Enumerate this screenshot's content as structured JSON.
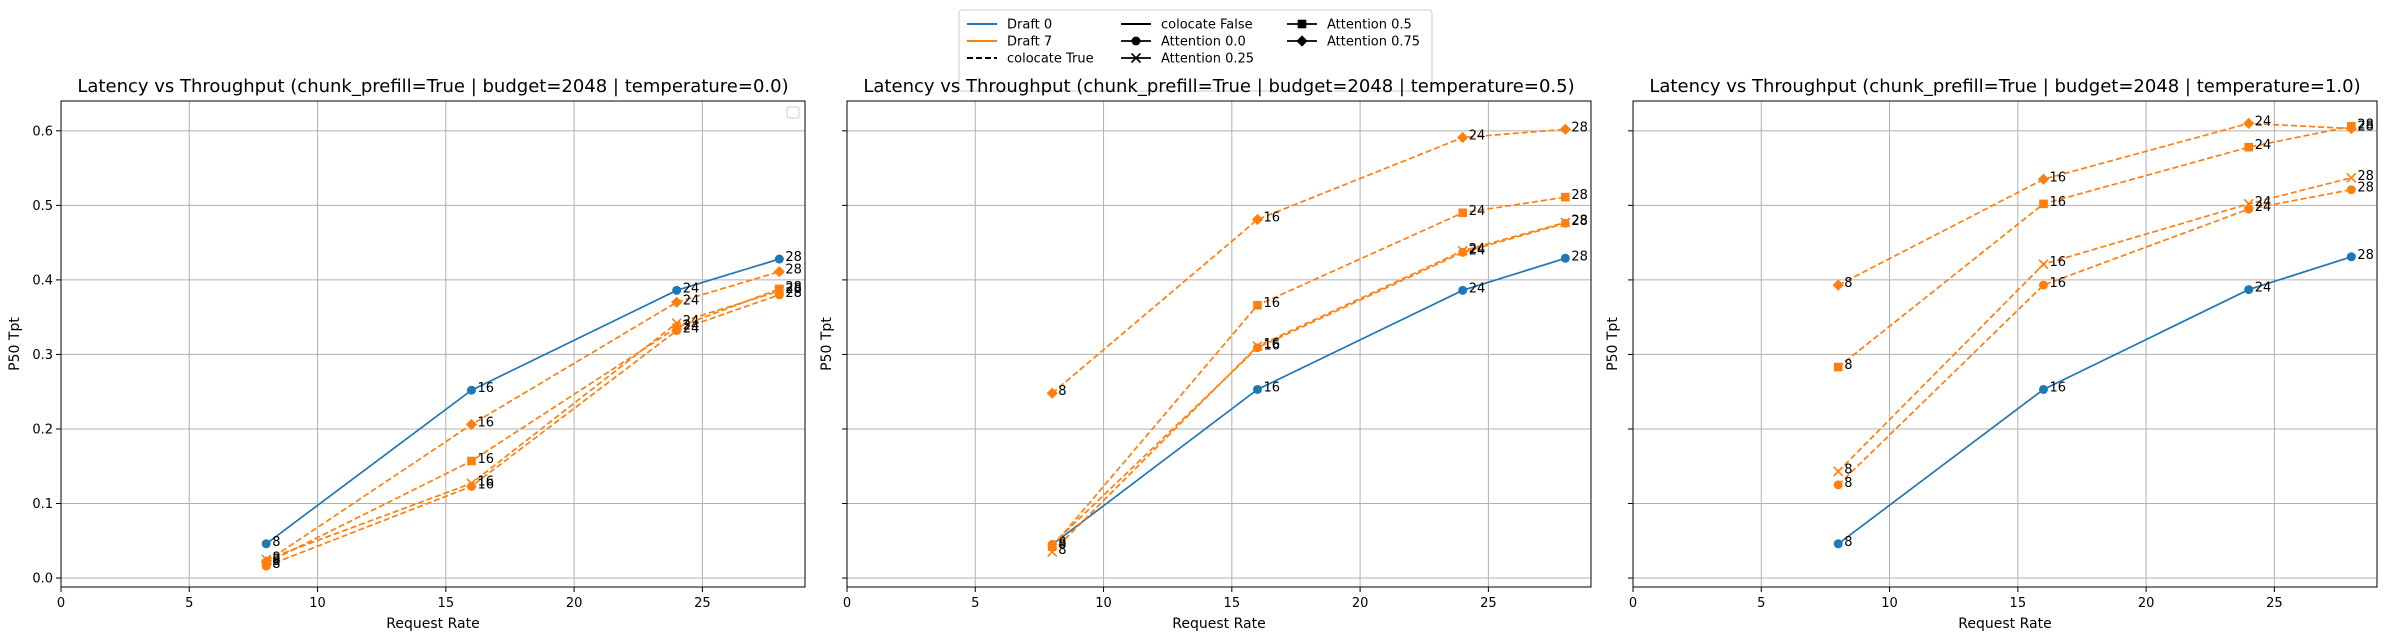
{
  "chart_data": [
    {
      "type": "line",
      "title": "Latency vs Throughput (chunk_prefill=True | budget=2048 | temperature=0.0)",
      "xlabel": "Request Rate",
      "ylabel": "P50 Tpt",
      "xlim": [
        0,
        29
      ],
      "ylim": [
        -0.012,
        0.64
      ],
      "xticks": [
        "0",
        "5",
        "10",
        "15",
        "20",
        "25"
      ],
      "yticks": [
        "0.0",
        "0.1",
        "0.2",
        "0.3",
        "0.4",
        "0.5",
        "0.6"
      ],
      "grid": true,
      "empty_legend": true,
      "series": [
        {
          "draft": "0",
          "colocate": "False",
          "attention": "0.0",
          "x": [
            8,
            16,
            24,
            28
          ],
          "y": [
            0.046,
            0.252,
            0.386,
            0.428
          ],
          "labels": [
            "8",
            "16",
            "24",
            "28"
          ]
        },
        {
          "draft": "7",
          "colocate": "True",
          "attention": "0.0",
          "x": [
            8,
            16,
            24,
            28
          ],
          "y": [
            0.016,
            0.123,
            0.332,
            0.38
          ],
          "labels": [
            "8",
            "16",
            "24",
            "28"
          ]
        },
        {
          "draft": "7",
          "colocate": "True",
          "attention": "0.25",
          "x": [
            8,
            16,
            24,
            28
          ],
          "y": [
            0.025,
            0.127,
            0.342,
            0.385
          ],
          "labels": [
            "8",
            "16",
            "24",
            "28"
          ]
        },
        {
          "draft": "7",
          "colocate": "True",
          "attention": "0.5",
          "x": [
            8,
            16,
            24,
            28
          ],
          "y": [
            0.02,
            0.157,
            0.336,
            0.388
          ],
          "labels": [
            "8",
            "16",
            "24",
            "28"
          ]
        },
        {
          "draft": "7",
          "colocate": "True",
          "attention": "0.75",
          "x": [
            8,
            16,
            24,
            28
          ],
          "y": [
            0.022,
            0.206,
            0.37,
            0.411
          ],
          "labels": [
            "8",
            "16",
            "24",
            "28"
          ]
        }
      ]
    },
    {
      "type": "line",
      "title": "Latency vs Throughput (chunk_prefill=True | budget=2048 | temperature=0.5)",
      "xlabel": "Request Rate",
      "ylabel": "P50 Tpt",
      "xlim": [
        0,
        29
      ],
      "ylim": [
        -0.012,
        0.64
      ],
      "xticks": [
        "0",
        "5",
        "10",
        "15",
        "20",
        "25"
      ],
      "yticks": [
        "0.0",
        "0.1",
        "0.2",
        "0.3",
        "0.4",
        "0.5",
        "0.6"
      ],
      "grid": true,
      "series": [
        {
          "draft": "0",
          "colocate": "False",
          "attention": "0.0",
          "x": [
            8,
            16,
            24,
            28
          ],
          "y": [
            0.045,
            0.253,
            0.386,
            0.429
          ],
          "labels": [
            "8",
            "16",
            "24",
            "28"
          ]
        },
        {
          "draft": "7",
          "colocate": "True",
          "attention": "0.0",
          "x": [
            8,
            16,
            24,
            28
          ],
          "y": [
            0.045,
            0.309,
            0.437,
            0.476
          ],
          "labels": [
            "8",
            "16",
            "24",
            "28"
          ]
        },
        {
          "draft": "7",
          "colocate": "True",
          "attention": "0.25",
          "x": [
            8,
            16,
            24,
            28
          ],
          "y": [
            0.035,
            0.311,
            0.439,
            0.477
          ],
          "labels": [
            "8",
            "16",
            "24",
            "28"
          ]
        },
        {
          "draft": "7",
          "colocate": "True",
          "attention": "0.5",
          "x": [
            8,
            16,
            24,
            28
          ],
          "y": [
            0.042,
            0.366,
            0.49,
            0.511
          ],
          "labels": [
            "8",
            "16",
            "24",
            "28"
          ]
        },
        {
          "draft": "7",
          "colocate": "True",
          "attention": "0.75",
          "x": [
            8,
            16,
            24,
            28
          ],
          "y": [
            0.248,
            0.481,
            0.591,
            0.602
          ],
          "labels": [
            "8",
            "16",
            "24",
            "28"
          ]
        }
      ]
    },
    {
      "type": "line",
      "title": "Latency vs Throughput (chunk_prefill=True | budget=2048 | temperature=1.0)",
      "xlabel": "Request Rate",
      "ylabel": "P50 Tpt",
      "xlim": [
        0,
        29
      ],
      "ylim": [
        -0.012,
        0.64
      ],
      "xticks": [
        "0",
        "5",
        "10",
        "15",
        "20",
        "25"
      ],
      "yticks": [
        "0.0",
        "0.1",
        "0.2",
        "0.3",
        "0.4",
        "0.5",
        "0.6"
      ],
      "grid": true,
      "series": [
        {
          "draft": "0",
          "colocate": "False",
          "attention": "0.0",
          "x": [
            8,
            16,
            24,
            28
          ],
          "y": [
            0.046,
            0.253,
            0.387,
            0.431
          ],
          "labels": [
            "8",
            "16",
            "24",
            "28"
          ]
        },
        {
          "draft": "7",
          "colocate": "True",
          "attention": "0.0",
          "x": [
            8,
            16,
            24,
            28
          ],
          "y": [
            0.125,
            0.393,
            0.495,
            0.521
          ],
          "labels": [
            "8",
            "16",
            "24",
            "28"
          ]
        },
        {
          "draft": "7",
          "colocate": "True",
          "attention": "0.25",
          "x": [
            8,
            16,
            24,
            28
          ],
          "y": [
            0.143,
            0.421,
            0.502,
            0.537
          ],
          "labels": [
            "8",
            "16",
            "24",
            "28"
          ]
        },
        {
          "draft": "7",
          "colocate": "True",
          "attention": "0.5",
          "x": [
            8,
            16,
            24,
            28
          ],
          "y": [
            0.283,
            0.502,
            0.578,
            0.606
          ],
          "labels": [
            "8",
            "16",
            "24",
            "28"
          ]
        },
        {
          "draft": "7",
          "colocate": "True",
          "attention": "0.75",
          "x": [
            8,
            16,
            24,
            28
          ],
          "y": [
            0.393,
            0.535,
            0.61,
            0.603
          ],
          "labels": [
            "8",
            "16",
            "24",
            "28"
          ]
        }
      ]
    }
  ],
  "legend": {
    "placement": "top-center",
    "entries": [
      {
        "label": "Draft 0",
        "kind": "color",
        "color": "#1f77b4"
      },
      {
        "label": "Draft 7",
        "kind": "color",
        "color": "#ff7f0e"
      },
      {
        "label": "colocate True",
        "kind": "linestyle",
        "dash": true
      },
      {
        "label": "colocate False",
        "kind": "linestyle",
        "dash": false
      },
      {
        "label": "Attention 0.0",
        "kind": "marker",
        "marker": "circle"
      },
      {
        "label": "Attention 0.25",
        "kind": "marker",
        "marker": "x"
      },
      {
        "label": "Attention 0.5",
        "kind": "marker",
        "marker": "square"
      },
      {
        "label": "Attention 0.75",
        "kind": "marker",
        "marker": "diamond"
      }
    ]
  },
  "colors": {
    "draft_0": "#1f77b4",
    "draft_7": "#ff7f0e"
  },
  "markers": {
    "0.0": "circle",
    "0.25": "x",
    "0.5": "square",
    "0.75": "diamond"
  }
}
